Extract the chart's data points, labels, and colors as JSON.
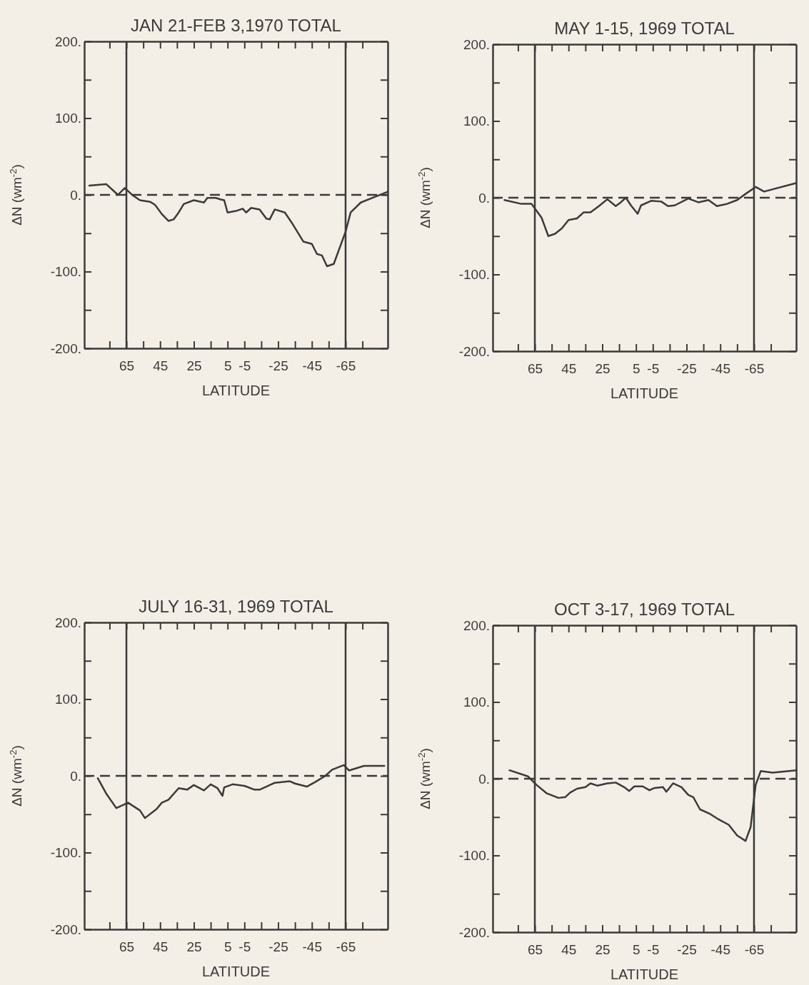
{
  "chart_data": [
    {
      "type": "line",
      "title": "JAN 21-FEB 3,1970 TOTAL",
      "xlabel": "LATITUDE",
      "ylabel": "ΔN (wm$^{-2}$)",
      "xlim": [
        90,
        -90
      ],
      "ylim": [
        -200,
        200
      ],
      "xticks": [
        {
          "value": 75,
          "label": null
        },
        65,
        {
          "value": 55,
          "label": null
        },
        45,
        {
          "value": 35,
          "label": null
        },
        25,
        {
          "value": 15,
          "label": null
        },
        5,
        -5,
        {
          "value": -15,
          "label": null
        },
        -25,
        {
          "value": -35,
          "label": null
        },
        -45,
        {
          "value": -55,
          "label": null
        },
        -65,
        {
          "value": -75,
          "label": null
        }
      ],
      "yticks": [
        {
          "value": -200,
          "label": "-200."
        },
        {
          "value": -150,
          "label": null
        },
        {
          "value": -100,
          "label": "-100."
        },
        {
          "value": -50,
          "label": null
        },
        {
          "value": 0,
          "label": "0."
        },
        {
          "value": 50,
          "label": null
        },
        {
          "value": 100,
          "label": "100."
        },
        {
          "value": 150,
          "label": null
        },
        {
          "value": 200,
          "label": "200."
        }
      ],
      "ref_lines": [
        {
          "axis": "x",
          "value": 65
        },
        {
          "axis": "x",
          "value": -65
        },
        {
          "axis": "y",
          "value": 0,
          "line_style": "dashed"
        }
      ],
      "x": [
        87,
        77,
        70,
        66,
        61,
        57,
        51,
        48,
        44,
        40,
        37,
        34,
        31,
        25,
        19,
        17,
        12,
        9,
        7,
        5,
        0,
        -4,
        -6,
        -9,
        -14,
        -18,
        -20,
        -23,
        -29,
        -33,
        -40,
        -45,
        -48,
        -51,
        -54,
        -58,
        -65,
        -68,
        -74,
        -90
      ],
      "series": [
        {
          "color": "#3a3a3a",
          "values": [
            12,
            14,
            0,
            9,
            -1,
            -7,
            -9,
            -13,
            -25,
            -34,
            -32,
            -23,
            -12,
            -7,
            -10,
            -4,
            -4,
            -6,
            -7,
            -23,
            -21,
            -18,
            -23,
            -17,
            -19,
            -31,
            -32,
            -19,
            -23,
            -36,
            -61,
            -64,
            -77,
            -79,
            -93,
            -90,
            -48,
            -23,
            -10,
            4
          ]
        }
      ]
    },
    {
      "type": "line",
      "title": "MAY 1-15, 1969 TOTAL",
      "xlabel": "LATITUDE",
      "ylabel": "ΔN (wm$^{-2}$)",
      "xlim": [
        90,
        -90
      ],
      "ylim": [
        -200,
        200
      ],
      "xticks": [
        {
          "value": 75,
          "label": null
        },
        65,
        {
          "value": 55,
          "label": null
        },
        45,
        {
          "value": 35,
          "label": null
        },
        25,
        {
          "value": 15,
          "label": null
        },
        5,
        -5,
        {
          "value": -15,
          "label": null
        },
        -25,
        {
          "value": -35,
          "label": null
        },
        -45,
        {
          "value": -55,
          "label": null
        },
        -65,
        {
          "value": -75,
          "label": null
        }
      ],
      "yticks": [
        {
          "value": -200,
          "label": "-200."
        },
        {
          "value": -150,
          "label": null
        },
        {
          "value": -100,
          "label": "-100."
        },
        {
          "value": -50,
          "label": null
        },
        {
          "value": 0,
          "label": "0."
        },
        {
          "value": 50,
          "label": null
        },
        {
          "value": 100,
          "label": "100."
        },
        {
          "value": 150,
          "label": null
        },
        {
          "value": 200,
          "label": "200."
        }
      ],
      "ref_lines": [
        {
          "axis": "x",
          "value": 65
        },
        {
          "axis": "x",
          "value": -65
        },
        {
          "axis": "y",
          "value": 0,
          "line_style": "dashed"
        }
      ],
      "x": [
        83,
        73,
        67,
        61,
        57,
        53,
        49,
        45,
        40,
        36,
        32,
        27,
        22,
        17,
        14,
        11,
        8,
        4,
        2,
        -4,
        -10,
        -14,
        -18,
        -26,
        -32,
        -38,
        -43,
        -49,
        -55,
        -60,
        -66,
        -71,
        -90
      ],
      "series": [
        {
          "color": "#3a3a3a",
          "values": [
            -3,
            -8,
            -8,
            -26,
            -50,
            -47,
            -40,
            -29,
            -27,
            -19,
            -19,
            -11,
            -2,
            -11,
            -6,
            0,
            -10,
            -21,
            -10,
            -4,
            -5,
            -11,
            -10,
            -1,
            -6,
            -3,
            -11,
            -8,
            -3,
            5,
            14,
            8,
            19
          ]
        }
      ]
    },
    {
      "type": "line",
      "title": "JULY 16-31, 1969 TOTAL",
      "xlabel": "LATITUDE",
      "ylabel": "ΔN (wm$^{-2}$)",
      "xlim": [
        90,
        -90
      ],
      "ylim": [
        -200,
        200
      ],
      "xticks": [
        {
          "value": 75,
          "label": null
        },
        65,
        {
          "value": 55,
          "label": null
        },
        45,
        {
          "value": 35,
          "label": null
        },
        25,
        {
          "value": 15,
          "label": null
        },
        5,
        -5,
        {
          "value": -15,
          "label": null
        },
        -25,
        {
          "value": -35,
          "label": null
        },
        -45,
        {
          "value": -55,
          "label": null
        },
        -65,
        {
          "value": -75,
          "label": null
        }
      ],
      "yticks": [
        {
          "value": -200,
          "label": "-200."
        },
        {
          "value": -150,
          "label": null
        },
        {
          "value": -100,
          "label": "-100."
        },
        {
          "value": -50,
          "label": null
        },
        {
          "value": 0,
          "label": "0."
        },
        {
          "value": 50,
          "label": null
        },
        {
          "value": 100,
          "label": "100."
        },
        {
          "value": 150,
          "label": null
        },
        {
          "value": 200,
          "label": "200."
        }
      ],
      "ref_lines": [
        {
          "axis": "x",
          "value": 65
        },
        {
          "axis": "x",
          "value": -65
        },
        {
          "axis": "y",
          "value": 0,
          "line_style": "dashed"
        }
      ],
      "x": [
        82,
        77,
        71,
        64,
        57,
        54,
        47,
        44,
        40,
        34,
        29,
        25,
        19,
        15,
        11,
        8,
        7,
        2,
        -5,
        -11,
        -14,
        -18,
        -23,
        -32,
        -35,
        -42,
        -47,
        -53,
        -57,
        -64,
        -67,
        -76,
        -88
      ],
      "series": [
        {
          "color": "#3a3a3a",
          "values": [
            -3,
            -23,
            -42,
            -35,
            -45,
            -55,
            -43,
            -35,
            -31,
            -16,
            -18,
            -12,
            -19,
            -11,
            -16,
            -26,
            -15,
            -11,
            -13,
            -18,
            -18,
            -14,
            -9,
            -7,
            -10,
            -14,
            -8,
            0,
            8,
            14,
            7,
            13,
            13
          ]
        }
      ]
    },
    {
      "type": "line",
      "title": "OCT 3-17, 1969 TOTAL",
      "xlabel": "LATITUDE",
      "ylabel": "ΔN (wm$^{-2}$)",
      "xlim": [
        90,
        -90
      ],
      "ylim": [
        -200,
        200
      ],
      "xticks": [
        {
          "value": 75,
          "label": null
        },
        65,
        {
          "value": 55,
          "label": null
        },
        45,
        {
          "value": 35,
          "label": null
        },
        25,
        {
          "value": 15,
          "label": null
        },
        5,
        -5,
        {
          "value": -15,
          "label": null
        },
        -25,
        {
          "value": -35,
          "label": null
        },
        -45,
        {
          "value": -55,
          "label": null
        },
        -65,
        {
          "value": -75,
          "label": null
        }
      ],
      "yticks": [
        {
          "value": -200,
          "label": "-200."
        },
        {
          "value": -150,
          "label": null
        },
        {
          "value": -100,
          "label": "-100."
        },
        {
          "value": -50,
          "label": null
        },
        {
          "value": 0,
          "label": "0."
        },
        {
          "value": 50,
          "label": null
        },
        {
          "value": 100,
          "label": "100."
        },
        {
          "value": 150,
          "label": null
        },
        {
          "value": 200,
          "label": "200."
        }
      ],
      "ref_lines": [
        {
          "axis": "x",
          "value": 65
        },
        {
          "axis": "x",
          "value": -65
        },
        {
          "axis": "y",
          "value": 0,
          "line_style": "dashed"
        }
      ],
      "x": [
        80,
        69,
        64,
        58,
        51,
        47,
        44,
        40,
        35,
        32,
        28,
        22,
        17,
        12,
        9,
        6,
        1,
        -3,
        -6,
        -11,
        -13,
        -17,
        -22,
        -26,
        -29,
        -33,
        -39,
        -44,
        -50,
        -55,
        -60,
        -63,
        -66,
        -69,
        -76,
        -90
      ],
      "series": [
        {
          "color": "#3a3a3a",
          "values": [
            11,
            3,
            -8,
            -19,
            -25,
            -24,
            -18,
            -13,
            -11,
            -6,
            -9,
            -6,
            -5,
            -11,
            -16,
            -10,
            -10,
            -15,
            -12,
            -11,
            -17,
            -6,
            -11,
            -21,
            -24,
            -40,
            -46,
            -53,
            -60,
            -74,
            -81,
            -63,
            -8,
            10,
            8,
            11
          ]
        }
      ]
    }
  ]
}
